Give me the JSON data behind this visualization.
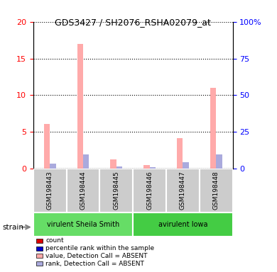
{
  "title": "GDS3427 / SH2076_RSHA02079_at",
  "samples": [
    "GSM198443",
    "GSM198444",
    "GSM198445",
    "GSM198446",
    "GSM198447",
    "GSM198448"
  ],
  "groups": [
    {
      "name": "virulent Sheila Smith",
      "color": "#66dd66",
      "samples": [
        0,
        1,
        2
      ]
    },
    {
      "name": "avirulent Iowa",
      "color": "#44cc44",
      "samples": [
        3,
        4,
        5
      ]
    }
  ],
  "count_values": [
    6.1,
    17.0,
    1.3,
    0.5,
    4.2,
    11.0
  ],
  "rank_values": [
    3.2,
    9.8,
    1.7,
    1.0,
    4.3,
    9.5
  ],
  "detection_call": [
    "ABSENT",
    "ABSENT",
    "ABSENT",
    "ABSENT",
    "ABSENT",
    "ABSENT"
  ],
  "left_ylim": [
    0,
    20
  ],
  "right_ylim": [
    0,
    100
  ],
  "left_yticks": [
    0,
    5,
    10,
    15,
    20
  ],
  "right_yticks": [
    0,
    25,
    50,
    75,
    100
  ],
  "color_count_present": "#dd0000",
  "color_rank_present": "#0000cc",
  "color_count_absent": "#ffaaaa",
  "color_rank_absent": "#aaaadd",
  "bar_width": 0.18,
  "background_color": "#ffffff",
  "plot_bg": "#ffffff",
  "label_count": "count",
  "label_rank": "percentile rank within the sample",
  "label_count_absent": "value, Detection Call = ABSENT",
  "label_rank_absent": "rank, Detection Call = ABSENT"
}
